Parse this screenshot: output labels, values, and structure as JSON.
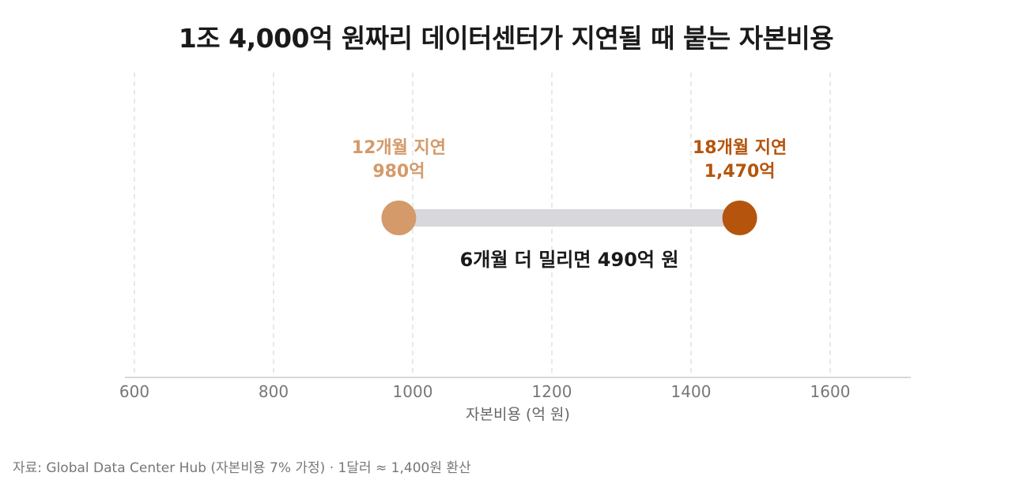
{
  "chart_data": {
    "type": "dumbbell",
    "title": "1조 4,000억 원짜리 데이터센터가 지연될 때 붙는 자본비용",
    "xlabel": "자본비용 (억 원)",
    "xlim": [
      600,
      1700
    ],
    "x_ticks": [
      600,
      800,
      1000,
      1200,
      1400,
      1600
    ],
    "grid": true,
    "points": [
      {
        "label": "12개월 지연",
        "value": 980,
        "value_label": "980억",
        "color": "#d49a6a"
      },
      {
        "label": "18개월 지연",
        "value": 1470,
        "value_label": "1,470억",
        "color": "#b5540d"
      }
    ],
    "annotation": "6개월 더 밀리면 490억 원",
    "connector_color": "#d8d8dc",
    "source": "자료: Global Data Center Hub (자본비용 7% 가정) · 1달러 ≈ 1,400원 환산"
  }
}
